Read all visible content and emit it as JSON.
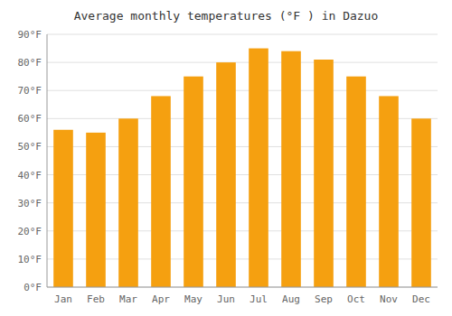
{
  "chart_data": {
    "type": "bar",
    "title": "Average monthly temperatures (°F ) in Dazuo",
    "categories": [
      "Jan",
      "Feb",
      "Mar",
      "Apr",
      "May",
      "Jun",
      "Jul",
      "Aug",
      "Sep",
      "Oct",
      "Nov",
      "Dec"
    ],
    "values": [
      56,
      55,
      60,
      68,
      75,
      80,
      85,
      84,
      81,
      75,
      68,
      60
    ],
    "color": "#F5A010",
    "ylim": [
      0,
      90
    ],
    "yticks": [
      {
        "value": 0,
        "label": "0°F"
      },
      {
        "value": 10,
        "label": "10°F"
      },
      {
        "value": 20,
        "label": "20°F"
      },
      {
        "value": 30,
        "label": "30°F"
      },
      {
        "value": 40,
        "label": "40°F"
      },
      {
        "value": 50,
        "label": "50°F"
      },
      {
        "value": 60,
        "label": "60°F"
      },
      {
        "value": 70,
        "label": "70°F"
      },
      {
        "value": 80,
        "label": "80°F"
      },
      {
        "value": 90,
        "label": "90°F"
      }
    ],
    "grid": true
  }
}
